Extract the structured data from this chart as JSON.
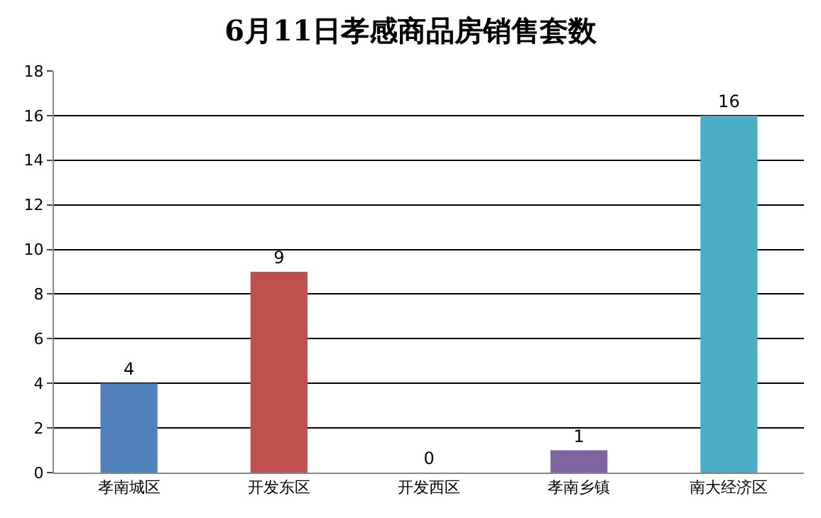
{
  "chart_data": {
    "type": "bar",
    "title": "6月11日孝感商品房销售套数",
    "categories": [
      "孝南城区",
      "开发东区",
      "开发西区",
      "孝南乡镇",
      "南大经济区"
    ],
    "values": [
      4,
      9,
      0,
      1,
      16
    ],
    "colors": [
      "#4f81bd",
      "#c0504d",
      "#9bbb59",
      "#8064a2",
      "#4bacc6"
    ],
    "ylim": [
      0,
      18
    ],
    "yticks": [
      0,
      2,
      4,
      6,
      8,
      10,
      12,
      14,
      16,
      18
    ],
    "grid": "y",
    "data_labels": true
  }
}
